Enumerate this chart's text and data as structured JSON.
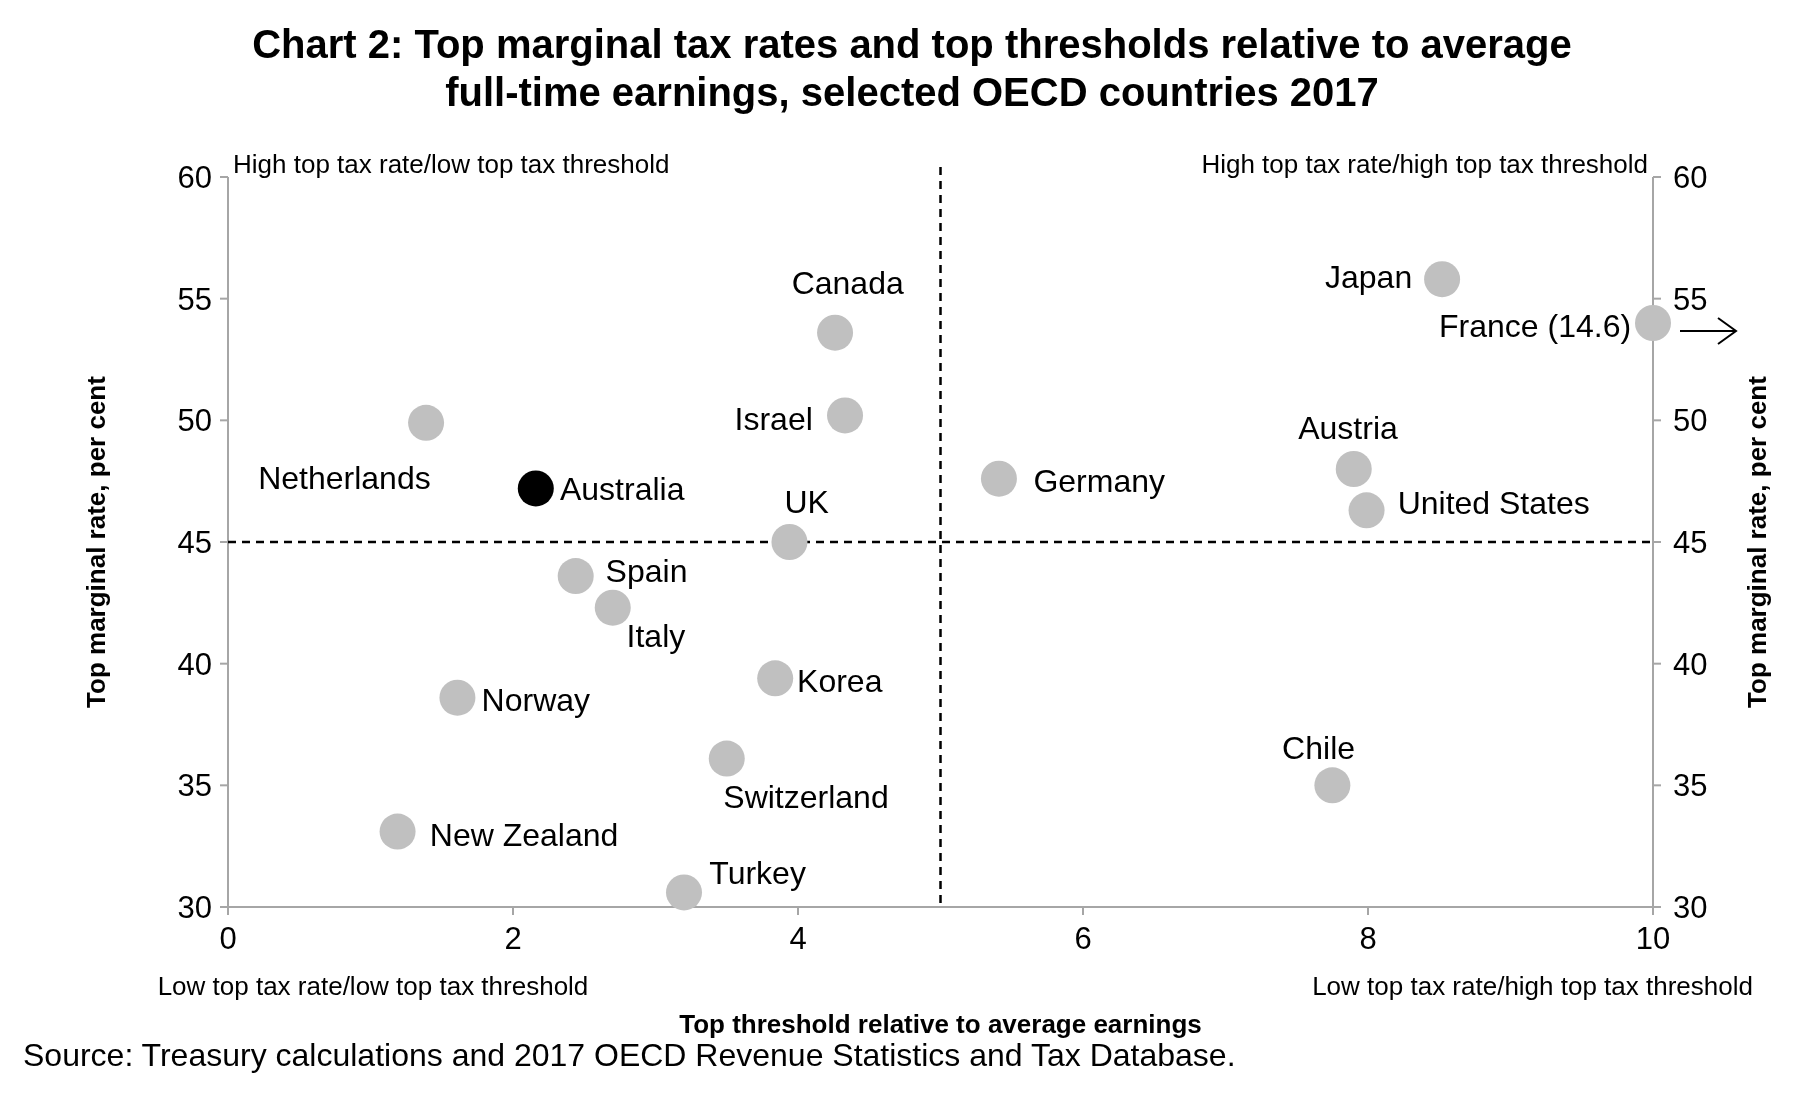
{
  "chart_data": {
    "type": "scatter",
    "title": "Chart 2: Top marginal tax rates and top thresholds relative to average full-time earnings, selected OECD countries 2017",
    "xlabel": "Top threshold relative to average earnings",
    "ylabel": "Top marginal rate, per cent",
    "y2label": "Top marginal rate, per cent",
    "xlim": [
      0,
      10
    ],
    "xticks": [
      0,
      2,
      4,
      6,
      8,
      10
    ],
    "ylim": [
      30,
      60
    ],
    "yticks": [
      30,
      35,
      40,
      45,
      50,
      55,
      60
    ],
    "y2lim": [
      30,
      60
    ],
    "y2ticks": [
      30,
      35,
      40,
      45,
      50,
      55,
      60
    ],
    "grid": false,
    "marker": "circle",
    "series": [
      {
        "x": [
          1.39,
          2.16,
          4.26,
          4.33,
          3.94,
          2.44,
          2.7,
          3.84,
          1.61,
          3.5,
          1.19,
          3.2,
          5.41,
          8.52,
          10,
          7.9,
          7.99,
          7.75
        ],
        "values": [
          49.9,
          47.2,
          53.6,
          50.2,
          45,
          43.6,
          42.3,
          39.4,
          38.6,
          36.1,
          33.1,
          30.6,
          47.6,
          55.8,
          54,
          48,
          46.3,
          35
        ],
        "colors": [
          "#c0c0c0",
          "#000000",
          "#c0c0c0",
          "#c0c0c0",
          "#c0c0c0",
          "#c0c0c0",
          "#c0c0c0",
          "#c0c0c0",
          "#c0c0c0",
          "#c0c0c0",
          "#c0c0c0",
          "#c0c0c0",
          "#c0c0c0",
          "#c0c0c0",
          "#c0c0c0",
          "#c0c0c0",
          "#c0c0c0",
          "#c0c0c0"
        ]
      }
    ],
    "ref_lines": [
      {
        "axis": "x",
        "value": 5,
        "color": "#000000",
        "line_style": "dashed"
      },
      {
        "axis": "y",
        "value": 45,
        "color": "#000000",
        "line_style": "dashed"
      }
    ],
    "annotations": [
      "High top tax rate/low top tax threshold",
      "High top tax rate/high top tax threshold",
      "Low top tax rate/low top tax threshold",
      "Low top tax rate/high top tax threshold",
      "Source: Treasury calculations and 2017 OECD Revenue Statistics and Tax Database.",
      {
        "text": "Netherlands",
        "x": 1.39,
        "y": 49.9
      },
      {
        "text": "Australia",
        "x": 2.16,
        "y": 47.2
      },
      {
        "text": "Canada",
        "x": 4.26,
        "y": 53.6
      },
      {
        "text": "Israel",
        "x": 4.33,
        "y": 50.2
      },
      {
        "text": "UK",
        "x": 3.94,
        "y": 45
      },
      {
        "text": "Spain",
        "x": 2.44,
        "y": 43.6
      },
      {
        "text": "Italy",
        "x": 2.7,
        "y": 42.3
      },
      {
        "text": "Korea",
        "x": 3.84,
        "y": 39.4
      },
      {
        "text": "Norway",
        "x": 1.61,
        "y": 38.6
      },
      {
        "text": "Switzerland",
        "x": 3.5,
        "y": 36.1
      },
      {
        "text": "New Zealand",
        "x": 1.19,
        "y": 33.1
      },
      {
        "text": "Turkey",
        "x": 3.2,
        "y": 30.6
      },
      {
        "text": "Germany",
        "x": 5.41,
        "y": 47.6
      },
      {
        "text": "Japan",
        "x": 8.52,
        "y": 55.8
      },
      {
        "text": "France (14.6)",
        "x": 10,
        "y": 54
      },
      {
        "text": "Austria",
        "x": 7.9,
        "y": 48
      },
      {
        "text": "United States",
        "x": 7.99,
        "y": 46.3
      },
      {
        "text": "Chile",
        "x": 7.75,
        "y": 35
      }
    ]
  }
}
